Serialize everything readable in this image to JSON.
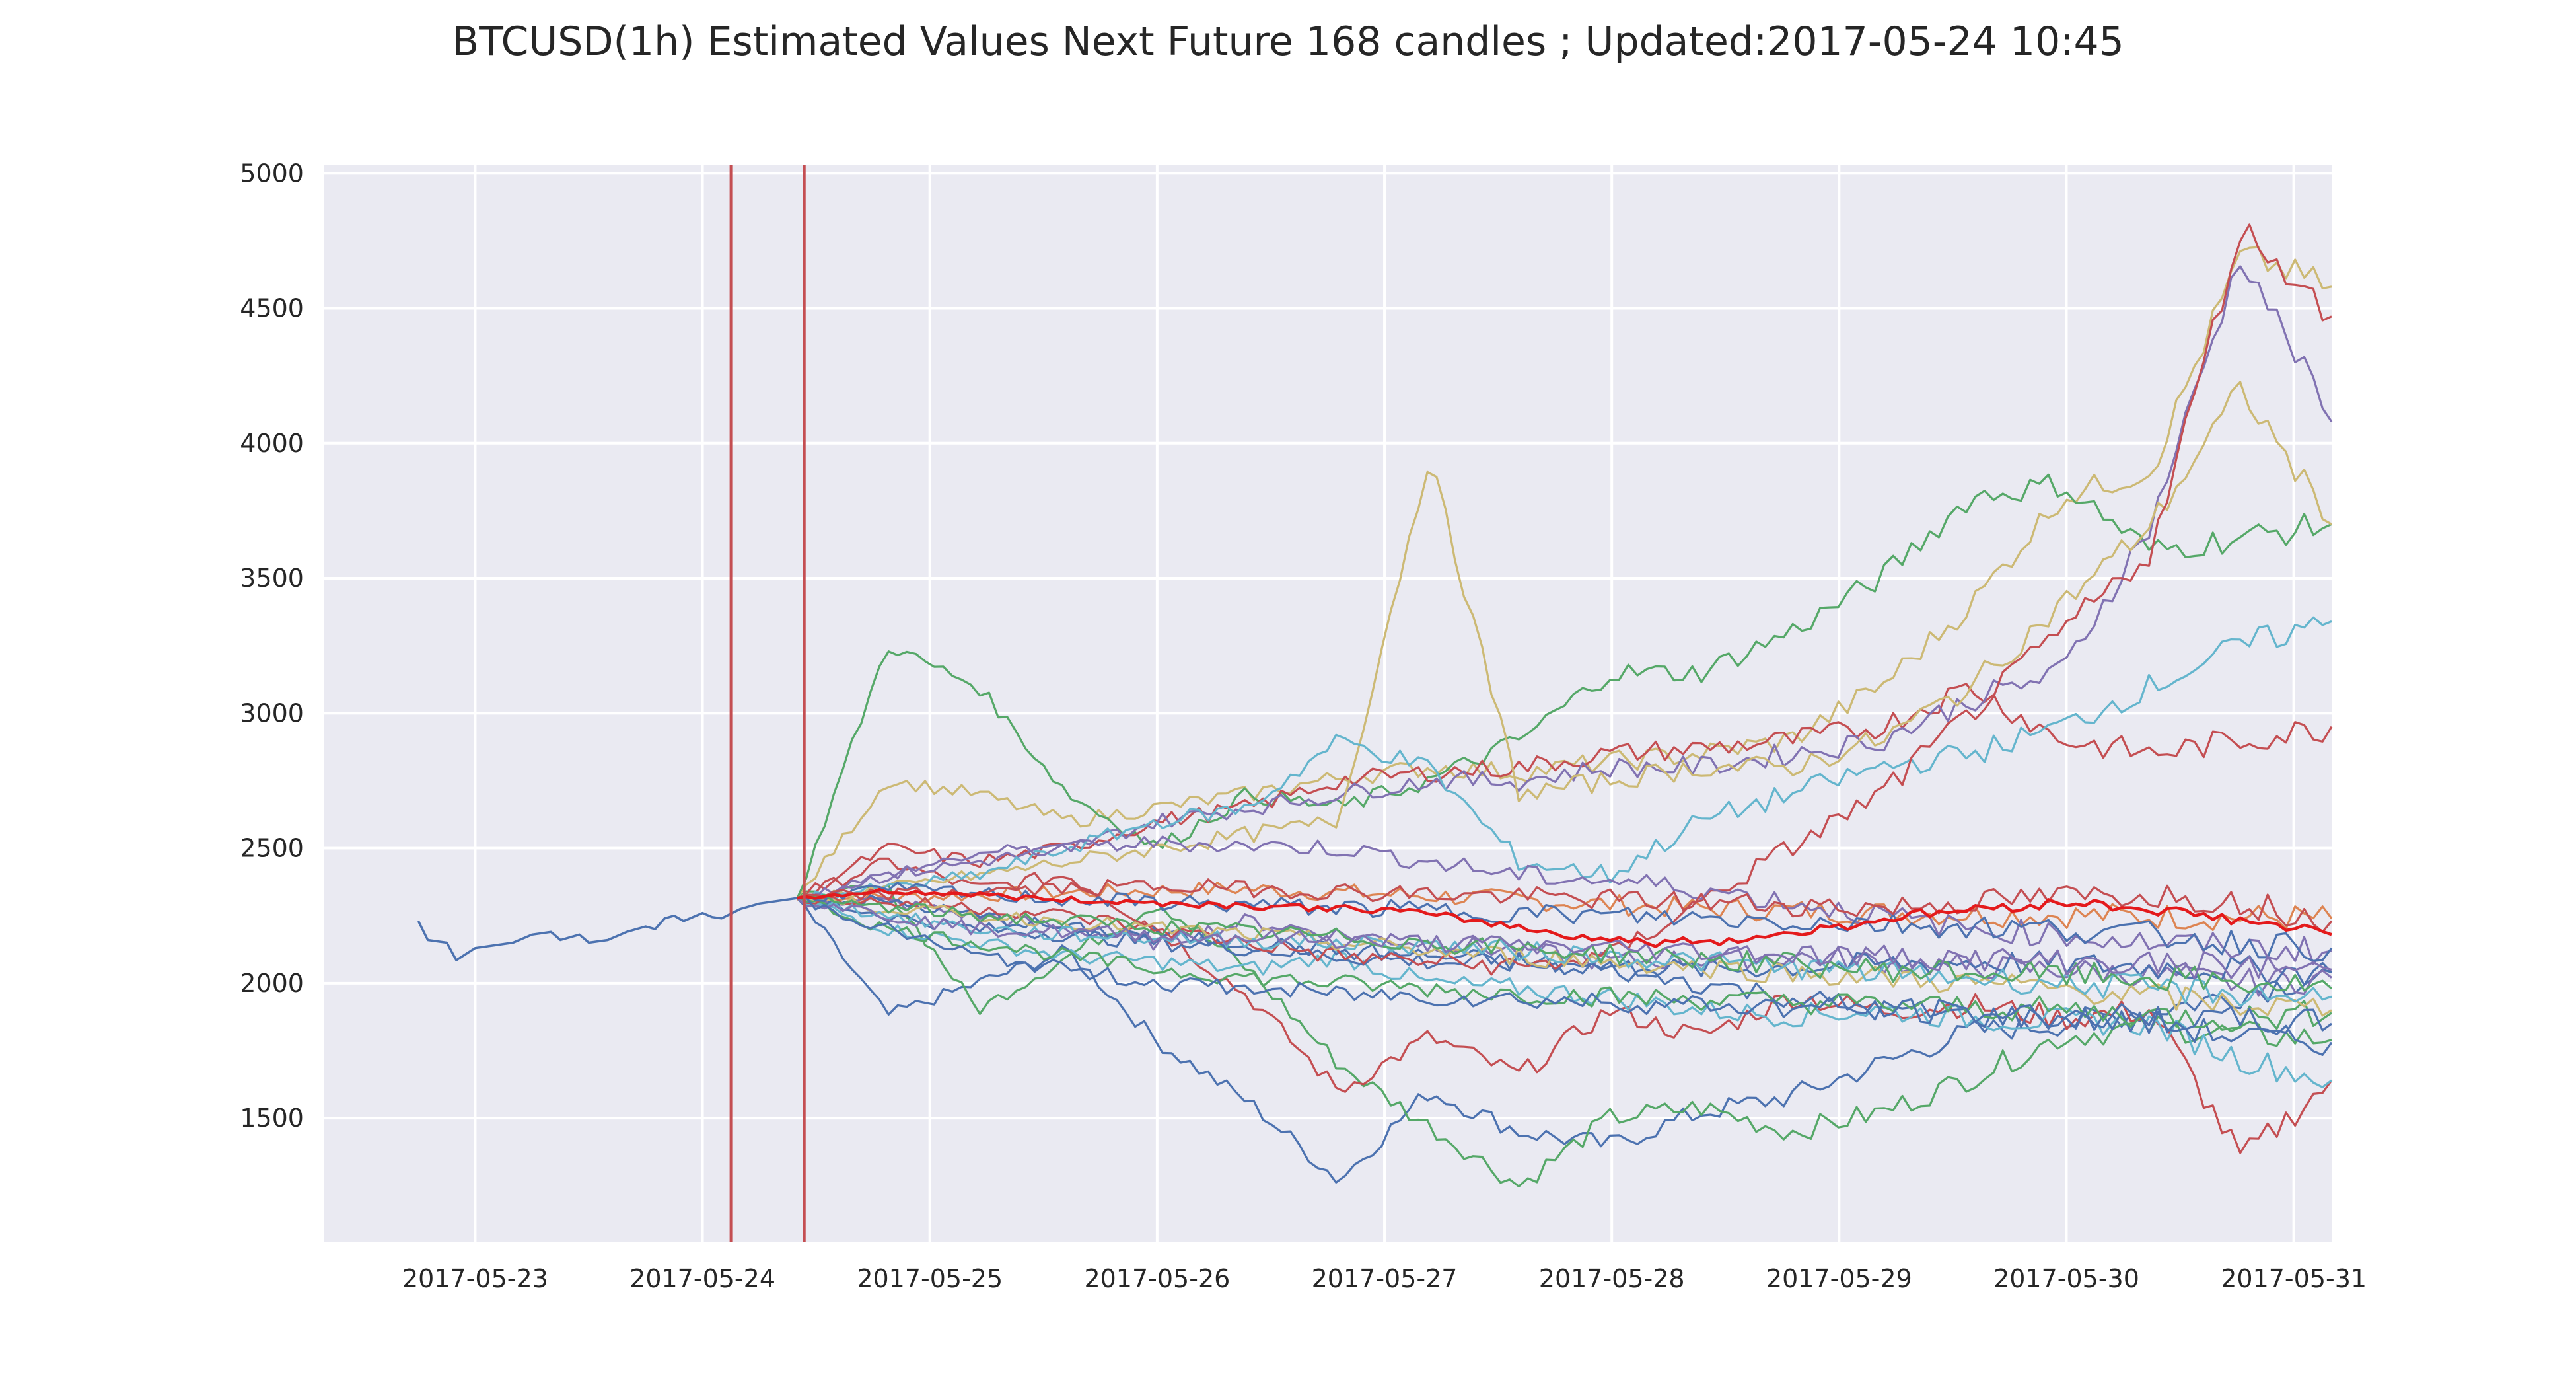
{
  "chart_data": {
    "type": "line",
    "title": "BTCUSD(1h) Estimated Values Next Future 168 candles ; Updated:2017-05-24 10:45",
    "xlabel": "",
    "ylabel": "",
    "xlim": [
      "2017-05-22T08:00",
      "2017-05-31T04:00"
    ],
    "ylim": [
      1040,
      5030
    ],
    "x_ticks": [
      "2017-05-23",
      "2017-05-24",
      "2017-05-25",
      "2017-05-26",
      "2017-05-27",
      "2017-05-28",
      "2017-05-29",
      "2017-05-30",
      "2017-05-31"
    ],
    "y_ticks": [
      1500,
      2000,
      2500,
      3000,
      3500,
      4000,
      4500,
      5000
    ],
    "grid": true,
    "legend": "none",
    "background": "#EAEAF2",
    "vertical_markers": [
      {
        "x": "2017-05-24T03:00",
        "color": "#C44E52"
      },
      {
        "x": "2017-05-24T10:45",
        "color": "#C44E52"
      }
    ],
    "history": {
      "color": "#4C72B0",
      "points": [
        [
          "2017-05-22T18:00",
          2230
        ],
        [
          "2017-05-22T19:00",
          2160
        ],
        [
          "2017-05-22T21:00",
          2150
        ],
        [
          "2017-05-22T22:00",
          2085
        ],
        [
          "2017-05-23T00:00",
          2130
        ],
        [
          "2017-05-23T02:00",
          2140
        ],
        [
          "2017-05-23T04:00",
          2150
        ],
        [
          "2017-05-23T06:00",
          2180
        ],
        [
          "2017-05-23T08:00",
          2190
        ],
        [
          "2017-05-23T09:00",
          2160
        ],
        [
          "2017-05-23T11:00",
          2180
        ],
        [
          "2017-05-23T12:00",
          2150
        ],
        [
          "2017-05-23T14:00",
          2160
        ],
        [
          "2017-05-23T16:00",
          2190
        ],
        [
          "2017-05-23T18:00",
          2210
        ],
        [
          "2017-05-23T19:00",
          2200
        ],
        [
          "2017-05-23T20:00",
          2240
        ],
        [
          "2017-05-23T21:00",
          2250
        ],
        [
          "2017-05-23T22:00",
          2230
        ],
        [
          "2017-05-24T00:00",
          2260
        ],
        [
          "2017-05-24T01:00",
          2245
        ],
        [
          "2017-05-24T02:00",
          2240
        ],
        [
          "2017-05-24T04:00",
          2275
        ],
        [
          "2017-05-24T06:00",
          2295
        ],
        [
          "2017-05-24T09:00",
          2310
        ],
        [
          "2017-05-24T10:00",
          2315
        ]
      ]
    },
    "forecast_start": "2017-05-24T10:00",
    "forecast_end": "2017-05-31T04:00",
    "series": [
      {
        "color": "#DD8452",
        "values": [
          2310,
          2330,
          2350,
          2320,
          2280,
          2260,
          2250,
          2240
        ]
      },
      {
        "color": "#4C72B0",
        "values": [
          2315,
          1880,
          2000,
          2120,
          1780,
          1560,
          1270,
          1600,
          1450,
          1400,
          1520,
          1580,
          1700,
          1820,
          1850,
          1900,
          1960,
          2040
        ]
      },
      {
        "color": "#55A868",
        "values": [
          2315,
          2350,
          1900,
          2100,
          2300,
          2050,
          1700,
          1470,
          1250,
          1500,
          1540,
          1450,
          1520,
          1650,
          1800,
          1840,
          1810,
          1790
        ]
      },
      {
        "color": "#C44E52",
        "values": [
          2315,
          2450,
          2350,
          2400,
          2200,
          1950,
          1600,
          1800,
          1660,
          1900,
          1800,
          1950,
          1900,
          1920,
          1870,
          1900,
          1350,
          1640
        ]
      },
      {
        "color": "#8172B2",
        "values": [
          2315,
          2300,
          2250,
          2200,
          2150,
          2230,
          2180,
          2150,
          2120,
          2080,
          2090,
          2100,
          2080,
          2060,
          2050,
          2030,
          2000,
          2020
        ]
      },
      {
        "color": "#CCB974",
        "values": [
          2315,
          2750,
          2700,
          2600,
          2650,
          2700,
          2760,
          2800,
          2780,
          2820,
          2850,
          2900,
          3100,
          3400,
          3800,
          3900,
          4700,
          4580
        ]
      },
      {
        "color": "#64B5CD",
        "values": [
          2315,
          2200,
          2150,
          2100,
          2080,
          2050,
          2100,
          2000,
          1980,
          1950,
          1900,
          1880,
          1900,
          1870,
          1860,
          1850,
          1720,
          1640
        ]
      },
      {
        "color": "#4C72B0",
        "values": [
          2315,
          2250,
          2200,
          2180,
          2150,
          2130,
          2100,
          2080,
          2070,
          2060,
          2050,
          2060,
          2070,
          2080,
          2070,
          2060,
          2050,
          2040
        ]
      },
      {
        "color": "#55A868",
        "values": [
          2315,
          3250,
          3100,
          2700,
          2500,
          2700,
          2650,
          2750,
          2900,
          3150,
          3150,
          3300,
          3500,
          3800,
          3850,
          3600,
          3650,
          3700
        ]
      },
      {
        "color": "#C44E52",
        "values": [
          2315,
          2500,
          2450,
          2500,
          2600,
          2650,
          2750,
          2780,
          2800,
          2850,
          2870,
          2900,
          2950,
          3100,
          2900,
          2850,
          2900,
          2950
        ]
      },
      {
        "color": "#8172B2",
        "values": [
          2315,
          2400,
          2450,
          2500,
          2600,
          2650,
          2700,
          2750,
          2750,
          2800,
          2800,
          2850,
          2900,
          3050,
          3150,
          3700,
          4700,
          4080
        ]
      },
      {
        "color": "#CCB974",
        "values": [
          2315,
          2350,
          2400,
          2450,
          2500,
          2550,
          2600,
          3950,
          2700,
          2750,
          2800,
          2800,
          2900,
          3100,
          3400,
          3700,
          4200,
          3700
        ]
      },
      {
        "color": "#64B5CD",
        "values": [
          2315,
          2350,
          2400,
          2500,
          2600,
          2650,
          2900,
          2800,
          2450,
          2400,
          2600,
          2700,
          2800,
          2850,
          2950,
          3100,
          3250,
          3340
        ]
      },
      {
        "color": "#4C72B0",
        "values": [
          2315,
          2300,
          2250,
          2200,
          2180,
          2150,
          2120,
          2100,
          2080,
          2050,
          2000,
          1950,
          1900,
          1880,
          1870,
          1850,
          1800,
          1780
        ]
      },
      {
        "color": "#55A868",
        "values": [
          2315,
          2200,
          2150,
          2100,
          2050,
          2020,
          2000,
          1980,
          1960,
          1950,
          1940,
          1930,
          1920,
          1910,
          1900,
          1880,
          1870,
          1890
        ]
      },
      {
        "color": "#C44E52",
        "values": [
          2315,
          2300,
          2280,
          2250,
          2200,
          2150,
          2100,
          2080,
          2060,
          2100,
          2300,
          2500,
          2700,
          3000,
          3300,
          3600,
          4800,
          4470
        ]
      },
      {
        "color": "#8172B2",
        "values": [
          2315,
          2400,
          2480,
          2500,
          2520,
          2510,
          2500,
          2450,
          2400,
          2380,
          2350,
          2300,
          2250,
          2200,
          2180,
          2150,
          2130,
          2120
        ]
      },
      {
        "color": "#CCB974",
        "values": [
          2315,
          2280,
          2250,
          2230,
          2200,
          2180,
          2150,
          2120,
          2100,
          2080,
          2060,
          2040,
          2020,
          2000,
          1980,
          1950,
          1920,
          1900
        ]
      },
      {
        "color": "#64B5CD",
        "values": [
          2315,
          2250,
          2200,
          2180,
          2170,
          2160,
          2150,
          2140,
          2120,
          2100,
          2080,
          2060,
          2040,
          2020,
          2000,
          1980,
          1960,
          1950
        ]
      },
      {
        "color": "#4C72B0",
        "values": [
          2315,
          2350,
          2330,
          2310,
          2300,
          2290,
          2280,
          2270,
          2260,
          2250,
          2240,
          2230,
          2220,
          2210,
          2200,
          2180,
          2150,
          2130
        ]
      },
      {
        "color": "#55A868",
        "values": [
          2315,
          2280,
          2250,
          2230,
          2210,
          2190,
          2170,
          2150,
          2130,
          2110,
          2090,
          2070,
          2050,
          2040,
          2030,
          2020,
          2000,
          1980
        ]
      },
      {
        "color": "#C44E52",
        "values": [
          2315,
          2330,
          2340,
          2350,
          2360,
          2350,
          2340,
          2330,
          2320,
          2310,
          2300,
          2290,
          2280,
          2300,
          2320,
          2330,
          2300,
          2230
        ]
      },
      {
        "color": "#8172B2",
        "values": [
          2315,
          2250,
          2200,
          2190,
          2180,
          2170,
          2160,
          2150,
          2140,
          2130,
          2120,
          2110,
          2100,
          2090,
          2080,
          2070,
          2060,
          2050
        ]
      },
      {
        "color": "#4C72B0",
        "values": [
          2315,
          2200,
          2100,
          2050,
          2000,
          1980,
          1960,
          1950,
          1940,
          1930,
          1920,
          1910,
          1900,
          1890,
          1880,
          1870,
          1860,
          1850
        ]
      }
    ],
    "mean_forecast": {
      "color": "#E41A1C",
      "values": [
        2315,
        2340,
        2330,
        2310,
        2300,
        2290,
        2280,
        2270,
        2230,
        2180,
        2150,
        2160,
        2200,
        2250,
        2280,
        2300,
        2270,
        2230,
        2180
      ]
    }
  }
}
